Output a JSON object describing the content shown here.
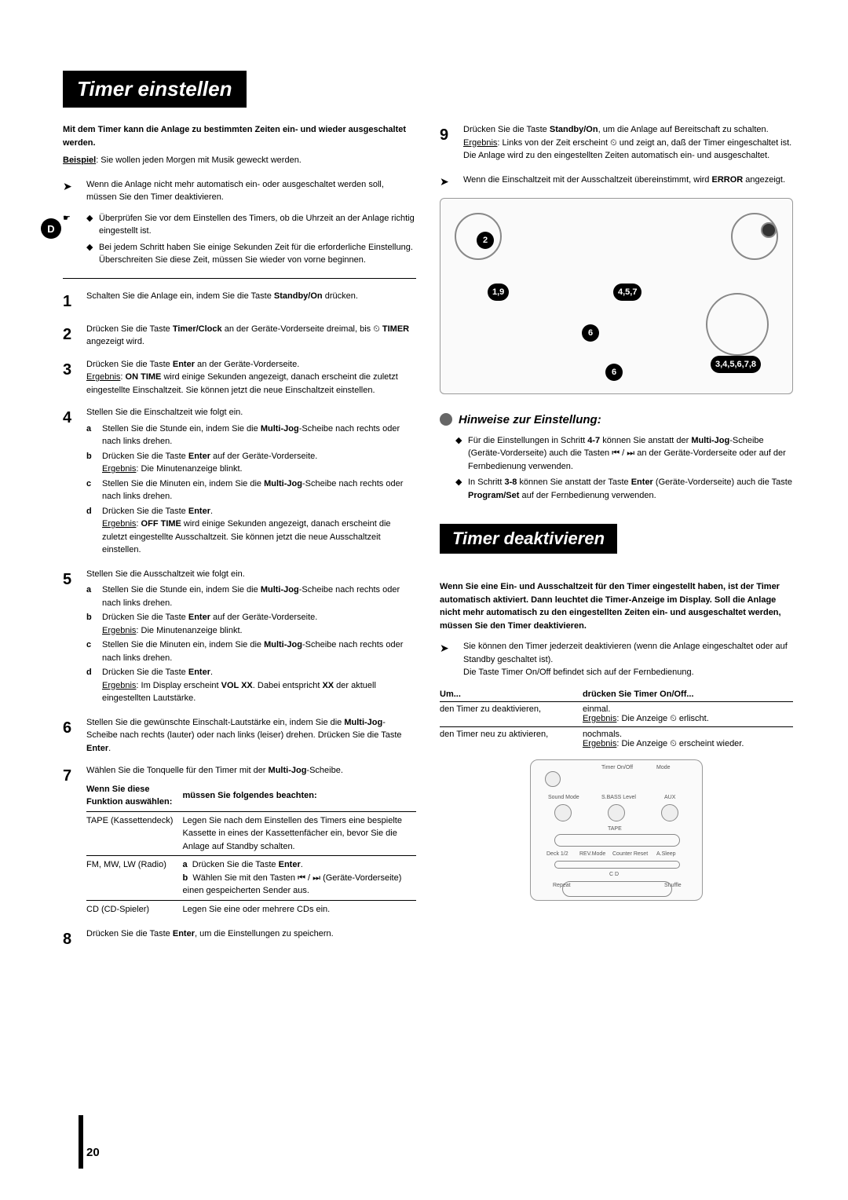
{
  "pageNumber": "20",
  "dBadge": "D",
  "titles": {
    "main": "Timer einstellen",
    "secondary": "Timer deaktivieren",
    "hints": "Hinweise zur Einstellung:"
  },
  "intro": {
    "bold": "Mit dem Timer kann die Anlage zu bestimmten Zeiten ein- und wieder ausgeschaltet werden.",
    "exampleLabel": "Beispiel",
    "exampleText": ": Sie wollen jeden Morgen mit Musik geweckt werden.",
    "note1": "Wenn die Anlage nicht mehr automatisch ein- oder ausgeschaltet werden soll, müssen Sie den Timer deaktivieren.",
    "note2a": "Überprüfen Sie vor dem Einstellen des Timers, ob die Uhrzeit an der Anlage richtig eingestellt ist.",
    "note2b": "Bei jedem Schritt haben Sie einige Sekunden Zeit für die erforderliche Einstellung. Überschreiten Sie diese Zeit, müssen Sie wieder von vorne beginnen."
  },
  "steps": [
    {
      "n": "1",
      "text": "Schalten Sie die Anlage ein, indem Sie die Taste <b>Standby/On</b> drücken."
    },
    {
      "n": "2",
      "text": "Drücken Sie die Taste <b>Timer/Clock</b> an der Geräte-Vorderseite dreimal, bis ⏲ <b>TIMER</b> angezeigt wird."
    },
    {
      "n": "3",
      "text": "Drücken Sie die Taste <b>Enter</b> an der Geräte-Vorderseite.<br><span class='u'>Ergebnis</span>: <b>ON TIME</b> wird einige Sekunden angezeigt, danach erscheint die zuletzt eingestellte Einschaltzeit. Sie können jetzt die neue Einschaltzeit einstellen."
    },
    {
      "n": "4",
      "text": "Stellen Sie die Einschaltzeit wie folgt ein.",
      "subs": [
        {
          "l": "a",
          "t": "Stellen Sie die Stunde ein, indem Sie die <b>Multi-Jog</b>-Scheibe nach rechts oder nach links drehen."
        },
        {
          "l": "b",
          "t": "Drücken Sie die Taste <b>Enter</b> auf der Geräte-Vorderseite.<br><span class='u'>Ergebnis</span>: Die Minutenanzeige blinkt."
        },
        {
          "l": "c",
          "t": "Stellen Sie die Minuten ein, indem Sie die <b>Multi-Jog</b>-Scheibe nach rechts oder nach links drehen."
        },
        {
          "l": "d",
          "t": "Drücken Sie die Taste <b>Enter</b>.<br><span class='u'>Ergebnis</span>: <b>OFF TIME</b> wird einige Sekunden angezeigt, danach erscheint die zuletzt eingestellte Ausschaltzeit. Sie können jetzt die neue Ausschaltzeit einstellen."
        }
      ]
    },
    {
      "n": "5",
      "text": "Stellen Sie die Ausschaltzeit wie folgt ein.",
      "subs": [
        {
          "l": "a",
          "t": "Stellen Sie die Stunde ein, indem Sie die <b>Multi-Jog</b>-Scheibe nach rechts oder nach links drehen."
        },
        {
          "l": "b",
          "t": "Drücken Sie die Taste <b>Enter</b> auf der Geräte-Vorderseite.<br><span class='u'>Ergebnis</span>: Die Minutenanzeige blinkt."
        },
        {
          "l": "c",
          "t": "Stellen Sie die Minuten ein, indem Sie die <b>Multi-Jog</b>-Scheibe nach rechts oder nach links drehen."
        },
        {
          "l": "d",
          "t": "Drücken Sie die Taste <b>Enter</b>.<br><span class='u'>Ergebnis</span>: Im Display erscheint <b>VOL XX</b>. Dabei entspricht <b>XX</b> der aktuell eingestellten Lautstärke."
        }
      ]
    },
    {
      "n": "6",
      "text": "Stellen Sie die gewünschte Einschalt-Lautstärke ein, indem Sie die <b>Multi-Jog</b>-Scheibe nach rechts (lauter) oder nach links (leiser) drehen. Drücken Sie die Taste <b>Enter</b>."
    },
    {
      "n": "7",
      "text": "Wählen Sie die Tonquelle für den Timer mit der <b>Multi-Jog</b>-Scheibe."
    },
    {
      "n": "8",
      "text": "Drücken Sie die Taste <b>Enter</b>, um die Einstellungen zu speichern."
    }
  ],
  "step7table": {
    "head1": "Wenn Sie diese Funktion auswählen:",
    "head2": "müssen Sie folgendes beachten:",
    "rows": [
      {
        "c1": "TAPE (Kassettendeck)",
        "c2": "Legen Sie nach dem Einstellen des Timers eine bespielte Kassette in eines der Kassettenfächer ein, bevor Sie die Anlage auf Standby schalten."
      },
      {
        "c1": "FM, MW, LW (Radio)",
        "c2": "<b>a</b>&nbsp; Drücken Sie die Taste <b>Enter</b>.<br><b>b</b>&nbsp; Wählen Sie mit den Tasten ⏮ / ⏭ (Geräte-Vorderseite) einen gespeicherten Sender aus."
      },
      {
        "c1": "CD (CD-Spieler)",
        "c2": "Legen Sie eine oder mehrere CDs ein."
      }
    ]
  },
  "rightTop": {
    "n": "9",
    "text": "Drücken Sie die Taste <b>Standby/On</b>, um die Anlage auf Bereitschaft zu schalten.<br><span class='u'>Ergebnis</span>: Links von der Zeit erscheint ⏲ und zeigt an, daß der Timer eingeschaltet ist.<br>Die Anlage wird zu den eingestellten Zeiten automatisch ein- und ausgeschaltet.",
    "warn": "Wenn die Einschaltzeit mit der Ausschaltzeit übereinstimmt, wird <b>ERROR</b> angezeigt."
  },
  "diagramCallouts": {
    "c2": "2",
    "c19": "1,9",
    "c457": "4,5,7",
    "c6a": "6",
    "c6b": "6",
    "c345678": "3,4,5,6,7,8"
  },
  "hints": {
    "b1": "Für die Einstellungen in Schritt <b>4-7</b> können Sie anstatt der <b>Multi-Jog</b>-Scheibe (Geräte-Vorderseite) auch die Tasten ⏮ / ⏭ an der Geräte-Vorderseite oder auf der Fernbedienung verwenden.",
    "b2": "In Schritt <b>3-8</b> können Sie anstatt der Taste <b>Enter</b> (Geräte-Vorderseite) auch die Taste <b>Program/Set</b> auf der Fernbedienung verwenden."
  },
  "deactivate": {
    "intro": "Wenn Sie eine Ein- und Ausschaltzeit für den Timer eingestellt haben, ist der Timer automatisch aktiviert. Dann leuchtet die Timer-Anzeige im Display. Soll die Anlage nicht mehr automatisch zu den eingestellten Zeiten ein- und ausgeschaltet werden, müssen Sie den Timer deaktivieren.",
    "note": "Sie können den Timer jederzeit deaktivieren (wenn die Anlage eingeschaltet oder auf Standby geschaltet ist).<br>Die Taste Timer On/Off befindet sich auf der Fernbedienung.",
    "tbl": {
      "h1": "Um...",
      "h2": "drücken Sie Timer On/Off...",
      "r1a": "den Timer zu deaktivieren,",
      "r1b": "einmal.<br><span class='u'>Ergebnis</span>: Die Anzeige ⏲ erlischt.",
      "r2a": "den Timer neu zu aktivieren,",
      "r2b": "nochmals.<br><span class='u'>Ergebnis</span>: Die Anzeige ⏲ erscheint wieder."
    }
  },
  "remoteLabels": {
    "timerOnOff": "Timer On/Off",
    "mode": "Mode",
    "soundMode": "Sound Mode",
    "sbass": "S.BASS Level",
    "aux": "AUX",
    "tape": "TAPE",
    "deck": "Deck 1/2",
    "rev": "REV.Mode",
    "counter": "Counter Reset",
    "sleep": "A.Sleep",
    "cd": "C D",
    "repeat": "Repeat",
    "shuffle": "Shuffle"
  }
}
